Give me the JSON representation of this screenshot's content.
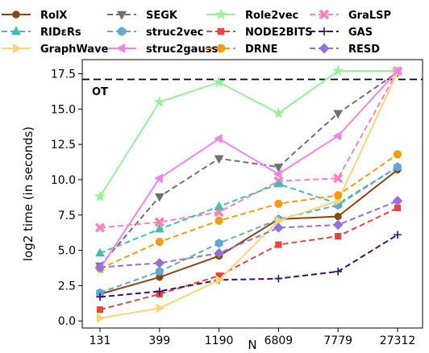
{
  "chart_data": {
    "type": "line",
    "categories": [
      "131",
      "399",
      "1190",
      "6809",
      "7779",
      "27312"
    ],
    "xlabel": "N",
    "ylabel": "log2 time (in seconds)",
    "ylim": [
      -0.5,
      18.5
    ],
    "yticks": [
      "0.0",
      "2.5",
      "5.0",
      "7.5",
      "10.0",
      "12.5",
      "15.0",
      "17.5"
    ],
    "reference_line": {
      "label": "OT",
      "value": 17.1
    },
    "legend_placement": "top",
    "grid": false,
    "series": [
      {
        "name": "RolX",
        "color": "#8b4513",
        "marker": "circle",
        "dash": "solid",
        "values": [
          1.9,
          3.1,
          4.6,
          7.2,
          7.4,
          10.7
        ]
      },
      {
        "name": "SEGK",
        "color": "#707070",
        "marker": "tri-down",
        "dash": "dashed",
        "values": [
          3.9,
          8.8,
          11.5,
          10.9,
          14.7,
          17.6
        ]
      },
      {
        "name": "Role2vec",
        "color": "#98f098",
        "marker": "star",
        "dash": "solid",
        "values": [
          8.8,
          15.5,
          16.9,
          14.7,
          17.7,
          17.7
        ]
      },
      {
        "name": "GraLSP",
        "color": "#ff7fbf",
        "marker": "x-thick",
        "dash": "dashed",
        "values": [
          6.6,
          7.0,
          7.7,
          9.9,
          10.1,
          17.7
        ]
      },
      {
        "name": "RIDεRs",
        "color": "#40c0a8",
        "marker": "tri-up",
        "dash": "dashed",
        "values": [
          4.8,
          6.5,
          8.1,
          9.7,
          8.3,
          10.9
        ]
      },
      {
        "name": "struc2vec",
        "color": "#5fa8d3",
        "marker": "hexagon",
        "dash": "dashed",
        "values": [
          2.0,
          3.5,
          5.5,
          7.2,
          8.2,
          10.9
        ]
      },
      {
        "name": "NODE2BITS",
        "color": "#e8453c",
        "marker": "square",
        "dash": "dashed",
        "values": [
          0.8,
          1.9,
          3.2,
          5.4,
          6.0,
          8.0
        ]
      },
      {
        "name": "GAS",
        "color": "#3b0f6e",
        "marker": "plus",
        "dash": "dashed",
        "values": [
          1.7,
          2.1,
          2.9,
          3.0,
          3.5,
          6.1
        ]
      },
      {
        "name": "GraphWave",
        "color": "#f7d774",
        "marker": "tri-right",
        "dash": "solid",
        "values": [
          0.2,
          0.9,
          2.9,
          7.1,
          8.5,
          17.6
        ]
      },
      {
        "name": "struc2gauss",
        "color": "#ee82ee",
        "marker": "tri-left",
        "dash": "solid",
        "values": [
          3.7,
          10.1,
          12.9,
          10.4,
          13.1,
          17.7
        ]
      },
      {
        "name": "DRNE",
        "color": "#f39c12",
        "marker": "octagon",
        "dash": "dashed",
        "values": [
          3.7,
          5.6,
          7.1,
          8.3,
          8.9,
          11.8
        ]
      },
      {
        "name": "RESD",
        "color": "#9370db",
        "marker": "diamond",
        "dash": "dashed",
        "values": [
          3.8,
          4.1,
          4.8,
          6.6,
          6.8,
          8.5
        ]
      }
    ],
    "legend_order": [
      [
        "RolX",
        "SEGK",
        "Role2vec",
        "GraLSP"
      ],
      [
        "RIDεRs",
        "struc2vec",
        "NODE2BITS",
        "GAS"
      ],
      [
        "GraphWave",
        "struc2gauss",
        "DRNE",
        "RESD"
      ]
    ]
  }
}
